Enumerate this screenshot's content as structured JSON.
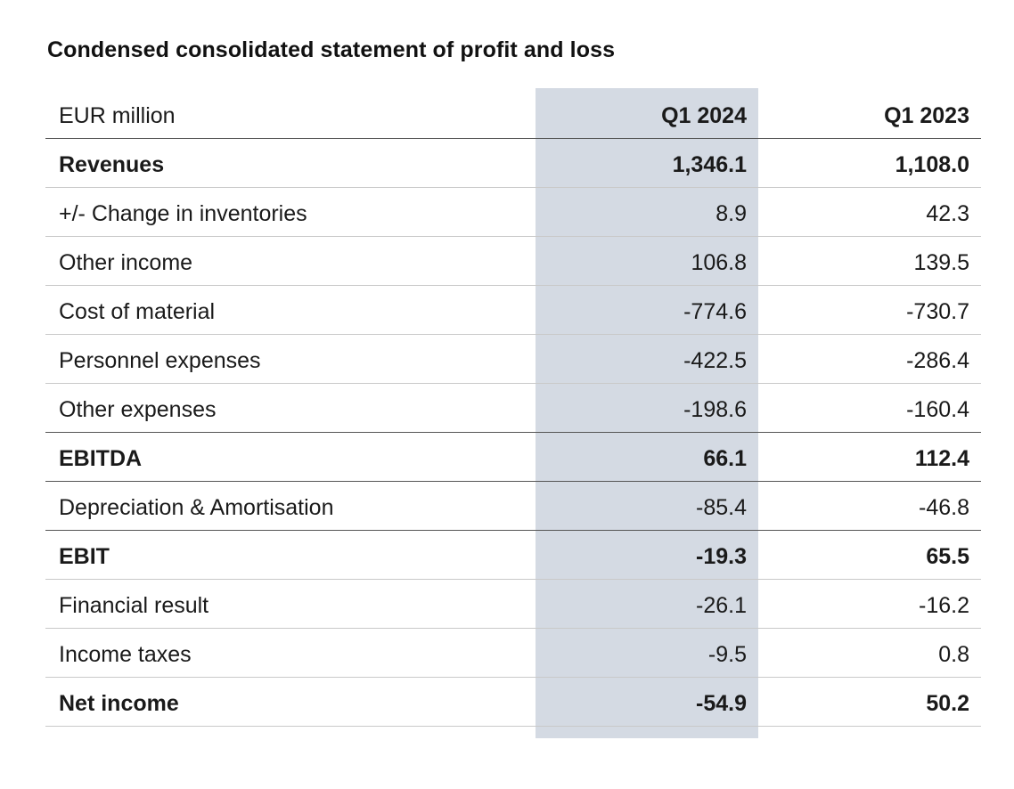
{
  "title": "Condensed consolidated statement of profit and loss",
  "colors": {
    "highlight_column": "#d4dae3"
  },
  "table": {
    "unit_label": "EUR million",
    "columns": [
      "Q1 2024",
      "Q1 2023"
    ],
    "rows": [
      {
        "label": "Revenues",
        "q1_2024": "1,346.1",
        "q1_2023": "1,108.0",
        "bold": true
      },
      {
        "label": "+/- Change in inventories",
        "q1_2024": "8.9",
        "q1_2023": "42.3",
        "bold": false
      },
      {
        "label": "Other income",
        "q1_2024": "106.8",
        "q1_2023": "139.5",
        "bold": false
      },
      {
        "label": "Cost of material",
        "q1_2024": "-774.6",
        "q1_2023": "-730.7",
        "bold": false
      },
      {
        "label": "Personnel expenses",
        "q1_2024": "-422.5",
        "q1_2023": "-286.4",
        "bold": false
      },
      {
        "label": "Other expenses",
        "q1_2024": "-198.6",
        "q1_2023": "-160.4",
        "bold": false
      },
      {
        "label": "EBITDA",
        "q1_2024": "66.1",
        "q1_2023": "112.4",
        "bold": true
      },
      {
        "label": "Depreciation & Amortisation",
        "q1_2024": "-85.4",
        "q1_2023": "-46.8",
        "bold": false
      },
      {
        "label": "EBIT",
        "q1_2024": "-19.3",
        "q1_2023": "65.5",
        "bold": true
      },
      {
        "label": "Financial result",
        "q1_2024": "-26.1",
        "q1_2023": "-16.2",
        "bold": false
      },
      {
        "label": "Income taxes",
        "q1_2024": "-9.5",
        "q1_2023": "0.8",
        "bold": false
      },
      {
        "label": "Net income",
        "q1_2024": "-54.9",
        "q1_2023": "50.2",
        "bold": true
      }
    ]
  }
}
